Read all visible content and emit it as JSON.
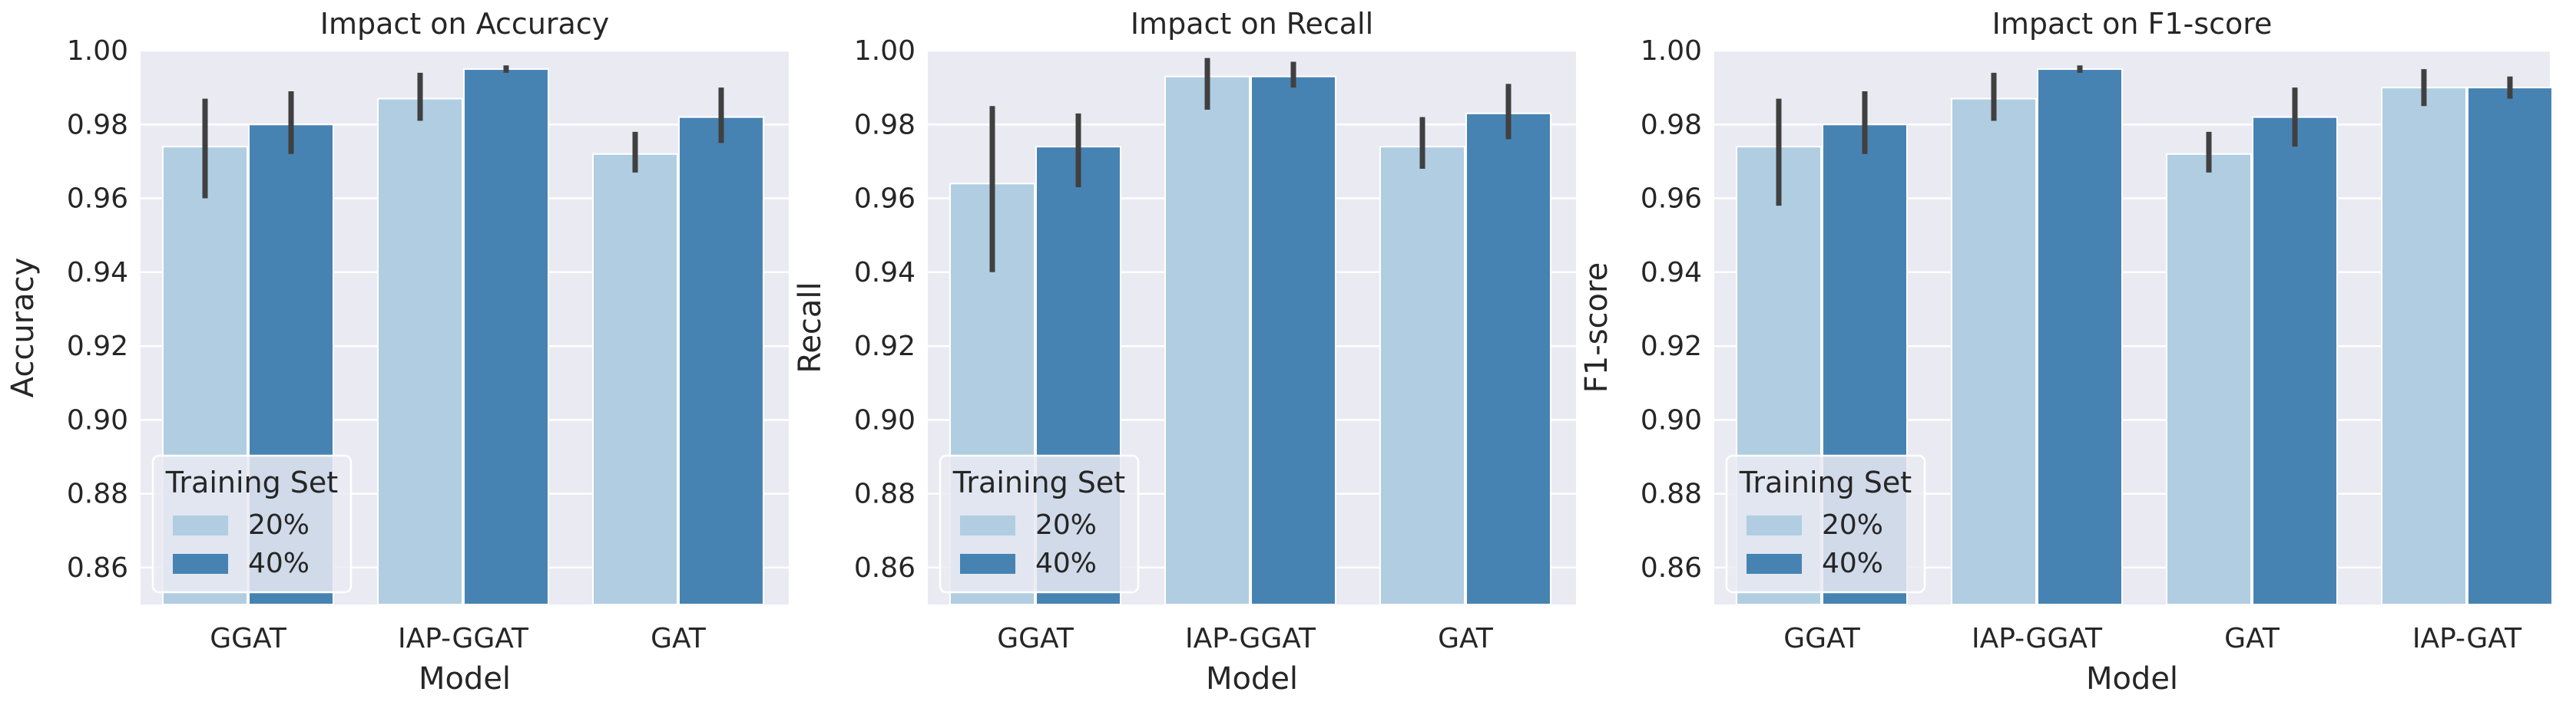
{
  "colors": {
    "background": "#eaeaf2",
    "grid": "#ffffff",
    "series_20": "#b1cde1",
    "series_40": "#4783b2",
    "error_bar": "#404040",
    "legend_frame": "#ffffff"
  },
  "chart_data": [
    {
      "type": "bar",
      "title": "Impact on Accuracy",
      "xlabel": "Model",
      "ylabel": "Accuracy",
      "ylim": [
        0.85,
        1.0
      ],
      "yticks": [
        0.86,
        0.88,
        0.9,
        0.92,
        0.94,
        0.96,
        0.98,
        1.0
      ],
      "ytick_labels": [
        "0.86",
        "0.88",
        "0.90",
        "0.92",
        "0.94",
        "0.96",
        "0.98",
        "1.00"
      ],
      "categories": [
        "GGAT",
        "IAP-GGAT",
        "GAT"
      ],
      "grid": true,
      "legend": {
        "title": "Training Set",
        "position": "lower-left",
        "entries": [
          "20%",
          "40%"
        ]
      },
      "series": [
        {
          "name": "20%",
          "values": [
            0.974,
            0.987,
            0.972
          ],
          "err_low": [
            0.96,
            0.981,
            0.967
          ],
          "err_high": [
            0.987,
            0.994,
            0.978
          ]
        },
        {
          "name": "40%",
          "values": [
            0.98,
            0.995,
            0.982
          ],
          "err_low": [
            0.972,
            0.994,
            0.975
          ],
          "err_high": [
            0.989,
            0.996,
            0.99
          ]
        }
      ]
    },
    {
      "type": "bar",
      "title": "Impact on Recall",
      "xlabel": "Model",
      "ylabel": "Recall",
      "ylim": [
        0.85,
        1.0
      ],
      "yticks": [
        0.86,
        0.88,
        0.9,
        0.92,
        0.94,
        0.96,
        0.98,
        1.0
      ],
      "ytick_labels": [
        "0.86",
        "0.88",
        "0.90",
        "0.92",
        "0.94",
        "0.96",
        "0.98",
        "1.00"
      ],
      "categories": [
        "GGAT",
        "IAP-GGAT",
        "GAT"
      ],
      "grid": true,
      "legend": {
        "title": "Training Set",
        "position": "lower-left",
        "entries": [
          "20%",
          "40%"
        ]
      },
      "series": [
        {
          "name": "20%",
          "values": [
            0.964,
            0.993,
            0.974
          ],
          "err_low": [
            0.94,
            0.984,
            0.968
          ],
          "err_high": [
            0.985,
            0.998,
            0.982
          ]
        },
        {
          "name": "40%",
          "values": [
            0.974,
            0.993,
            0.983
          ],
          "err_low": [
            0.963,
            0.99,
            0.976
          ],
          "err_high": [
            0.983,
            0.997,
            0.991
          ]
        }
      ]
    },
    {
      "type": "bar",
      "title": "Impact on F1-score",
      "xlabel": "Model",
      "ylabel": "F1-score",
      "ylim": [
        0.85,
        1.0
      ],
      "yticks": [
        0.86,
        0.88,
        0.9,
        0.92,
        0.94,
        0.96,
        0.98,
        1.0
      ],
      "ytick_labels": [
        "0.86",
        "0.88",
        "0.90",
        "0.92",
        "0.94",
        "0.96",
        "0.98",
        "1.00"
      ],
      "categories": [
        "GGAT",
        "IAP-GGAT",
        "GAT",
        "IAP-GAT"
      ],
      "grid": true,
      "legend": {
        "title": "Training Set",
        "position": "lower-left",
        "entries": [
          "20%",
          "40%"
        ]
      },
      "series": [
        {
          "name": "20%",
          "values": [
            0.974,
            0.987,
            0.972,
            0.99
          ],
          "err_low": [
            0.958,
            0.981,
            0.967,
            0.985
          ],
          "err_high": [
            0.987,
            0.994,
            0.978,
            0.995
          ]
        },
        {
          "name": "40%",
          "values": [
            0.98,
            0.995,
            0.982,
            0.99
          ],
          "err_low": [
            0.972,
            0.994,
            0.974,
            0.987
          ],
          "err_high": [
            0.989,
            0.996,
            0.99,
            0.993
          ]
        }
      ]
    }
  ]
}
